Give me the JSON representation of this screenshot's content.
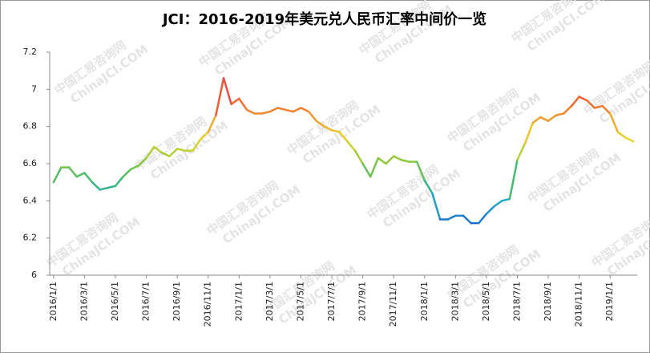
{
  "chart_data": {
    "type": "line",
    "title": "JCI：2016-2019年美元兑人民币汇率中间价一览",
    "watermark": "中国汇易咨询网",
    "watermark_url": "ChinaJCI.COM",
    "categories": [
      "2016/1/1",
      null,
      null,
      null,
      "2016/3/1",
      null,
      null,
      null,
      "2016/5/1",
      null,
      null,
      null,
      "2016/7/1",
      null,
      null,
      null,
      "2016/9/1",
      null,
      null,
      null,
      "2016/11/1",
      null,
      null,
      null,
      "2017/1/1",
      null,
      null,
      null,
      "2017/3/1",
      null,
      null,
      null,
      "2017/5/1",
      null,
      null,
      null,
      "2017/7/1",
      null,
      null,
      null,
      "2017/9/1",
      null,
      null,
      null,
      "2017/11/1",
      null,
      null,
      null,
      "2018/1/1",
      null,
      null,
      null,
      "2018/3/1",
      null,
      null,
      null,
      "2018/5/1",
      null,
      null,
      null,
      "2018/7/1",
      null,
      null,
      null,
      "2018/9/1",
      null,
      null,
      null,
      "2018/11/1",
      null,
      null,
      null,
      "2019/1/1",
      null,
      null,
      null
    ],
    "values": [
      6.5,
      6.58,
      6.58,
      6.53,
      6.55,
      6.5,
      6.46,
      6.47,
      6.48,
      6.53,
      6.57,
      6.59,
      6.63,
      6.69,
      6.66,
      6.64,
      6.68,
      6.67,
      6.67,
      6.73,
      6.77,
      6.86,
      7.06,
      6.92,
      6.95,
      6.89,
      6.87,
      6.87,
      6.88,
      6.9,
      6.89,
      6.88,
      6.9,
      6.88,
      6.83,
      6.8,
      6.78,
      6.77,
      6.72,
      6.67,
      6.6,
      6.53,
      6.63,
      6.6,
      6.64,
      6.62,
      6.61,
      6.61,
      6.51,
      6.44,
      6.3,
      6.3,
      6.32,
      6.32,
      6.28,
      6.28,
      6.33,
      6.37,
      6.4,
      6.41,
      6.62,
      6.71,
      6.82,
      6.85,
      6.83,
      6.86,
      6.87,
      6.91,
      6.96,
      6.94,
      6.9,
      6.91,
      6.87,
      6.77,
      6.74,
      6.72
    ],
    "colors": [
      "#1f6fc8",
      "#22a8c8",
      "#3cb878",
      "#8cc83c",
      "#e8d828",
      "#f0a030",
      "#f06030",
      "#e0306a"
    ],
    "ylim": [
      6,
      7.2
    ],
    "yticks": [
      6,
      6.2,
      6.4,
      6.6,
      6.8,
      7,
      7.2
    ],
    "grid": false
  }
}
